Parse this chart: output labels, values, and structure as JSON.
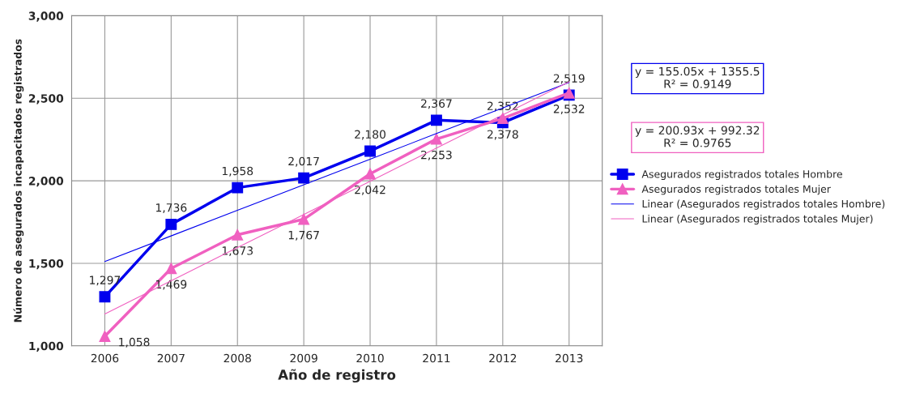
{
  "chart_data": {
    "type": "line",
    "xlabel": "Año de registro",
    "ylabel": "Número de asegurados incapacitados registrados",
    "categories": [
      "2006",
      "2007",
      "2008",
      "2009",
      "2010",
      "2011",
      "2012",
      "2013"
    ],
    "series": [
      {
        "name": "Asegurados registrados totales Hombre",
        "color": "#0000ee",
        "marker": "square",
        "values": [
          1297,
          1736,
          1958,
          2017,
          2180,
          2367,
          2352,
          2519
        ],
        "value_labels": [
          "1,297",
          "1,736",
          "1,958",
          "2,017",
          "2,180",
          "2,367",
          "2,352",
          "2,519"
        ]
      },
      {
        "name": "Asegurados registrados totales Mujer",
        "color": "#f060c0",
        "marker": "triangle",
        "values": [
          1058,
          1469,
          1673,
          1767,
          2042,
          2253,
          2378,
          2532
        ],
        "value_labels": [
          "1,058",
          "1,469",
          "1,673",
          "1,767",
          "2,042",
          "2,253",
          "2,378",
          "2,532"
        ]
      },
      {
        "name": "Linear (Asegurados registrados totales Hombre)",
        "color": "#0000ee",
        "marker": "none",
        "values": [
          1511,
          1666,
          1821,
          1976,
          2131,
          2286,
          2441,
          2596
        ]
      },
      {
        "name": "Linear (Asegurados registrados totales Mujer)",
        "color": "#f060c0",
        "marker": "none",
        "values": [
          1193,
          1394,
          1595,
          1796,
          1997,
          2198,
          2399,
          2600
        ]
      }
    ],
    "ylim": [
      1000,
      3000
    ],
    "yticks": [
      {
        "value": 1000,
        "label": "1,000"
      },
      {
        "value": 1500,
        "label": "1,500"
      },
      {
        "value": 2000,
        "label": "2,000"
      },
      {
        "value": 2500,
        "label": "2,500"
      },
      {
        "value": 3000,
        "label": "3,000"
      }
    ],
    "grid": true,
    "legend": "right",
    "annotations": [
      "y = 155.05x + 1355.5\nR² = 0.9149",
      "y = 200.93x + 992.32\nR² = 0.9765"
    ]
  }
}
